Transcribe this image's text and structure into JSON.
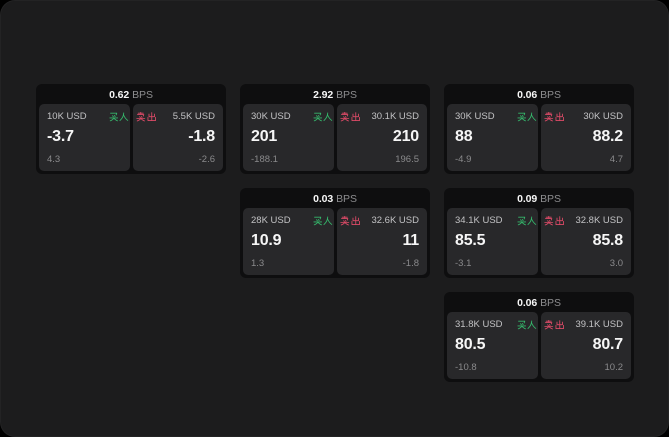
{
  "unit_label": "BPS",
  "colors": {
    "outer_background": "#000000",
    "surface_background": "#1c1c1d",
    "card_background": "#0e0e0f",
    "panel_background": "#28282a",
    "buy_green": "#35b96c",
    "sell_red": "#dd4a67",
    "text_primary": "#f6f6f6",
    "text_secondary": "#c2c2c4",
    "text_muted": "#8a8a8c"
  },
  "cards": [
    {
      "bps": "0.62",
      "buy": {
        "size": "10K USD",
        "label": "买入",
        "price": "-3.7",
        "sub": "4.3"
      },
      "sell": {
        "label": "卖出",
        "size": "5.5K USD",
        "price": "-1.8",
        "sub": "-2.6"
      }
    },
    {
      "bps": "2.92",
      "buy": {
        "size": "30K USD",
        "label": "买入",
        "price": "201",
        "sub": "-188.1"
      },
      "sell": {
        "label": "卖出",
        "size": "30.1K USD",
        "price": "210",
        "sub": "196.5"
      }
    },
    {
      "bps": "0.06",
      "buy": {
        "size": "30K USD",
        "label": "买入",
        "price": "88",
        "sub": "-4.9"
      },
      "sell": {
        "label": "卖出",
        "size": "30K USD",
        "price": "88.2",
        "sub": "4.7"
      }
    },
    {
      "bps": "0.03",
      "buy": {
        "size": "28K USD",
        "label": "买入",
        "price": "10.9",
        "sub": "1.3"
      },
      "sell": {
        "label": "卖出",
        "size": "32.6K USD",
        "price": "11",
        "sub": "-1.8"
      }
    },
    {
      "bps": "0.09",
      "buy": {
        "size": "34.1K USD",
        "label": "买入",
        "price": "85.5",
        "sub": "-3.1"
      },
      "sell": {
        "label": "卖出",
        "size": "32.8K USD",
        "price": "85.8",
        "sub": "3.0"
      }
    },
    {
      "bps": "0.06",
      "buy": {
        "size": "31.8K USD",
        "label": "买入",
        "price": "80.5",
        "sub": "-10.8"
      },
      "sell": {
        "label": "卖出",
        "size": "39.1K USD",
        "price": "80.7",
        "sub": "10.2"
      }
    }
  ]
}
